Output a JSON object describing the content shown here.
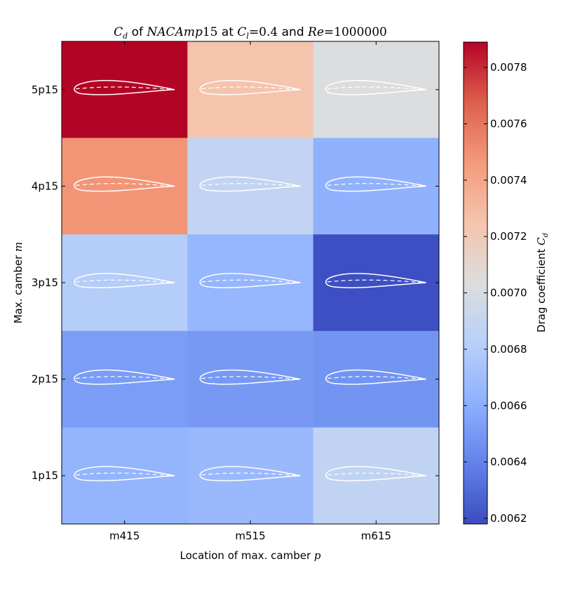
{
  "chart_data": {
    "type": "heatmap",
    "title": "$C_d$ of $NACAmp15$ at $C_l=0.4$ and $Re=1000000$",
    "title_parts": {
      "cd": "C",
      "cd_sub": "d",
      "of": " of ",
      "naca": "NACAmp",
      "naca_num": "15",
      "at": " at ",
      "cl": "C",
      "cl_sub": "l",
      "cl_eq": "=0.4",
      "and": " and ",
      "re": "Re",
      "re_eq": "=1000000"
    },
    "xlabel": "Location of max. camber",
    "xlabel_var": "p",
    "ylabel": "Max. camber",
    "ylabel_var": "m",
    "x_categories": [
      "m415",
      "m515",
      "m615"
    ],
    "y_categories": [
      "5p15",
      "4p15",
      "3p15",
      "2p15",
      "1p15"
    ],
    "values": [
      [
        0.0079,
        0.00725,
        0.00703
      ],
      [
        0.00748,
        0.00688,
        0.00662
      ],
      [
        0.0068,
        0.00665,
        0.00619
      ],
      [
        0.00652,
        0.0065,
        0.00648
      ],
      [
        0.00664,
        0.00667,
        0.00687
      ]
    ],
    "colorbar": {
      "label": "Drag coefficient",
      "label_var": "C",
      "label_sub": "d",
      "vmin": 0.00618,
      "vmax": 0.00789,
      "ticks": [
        "0.0062",
        "0.0064",
        "0.0066",
        "0.0068",
        "0.0070",
        "0.0072",
        "0.0074",
        "0.0076",
        "0.0078"
      ],
      "colormap": "coolwarm",
      "cold_color": "#3b4cc0",
      "mid_color": "#dddddd",
      "warm_color": "#b40426"
    },
    "cell_glyph": "airfoil-outline-with-dashed-camber-line",
    "glyph_color": "#ffffff"
  }
}
